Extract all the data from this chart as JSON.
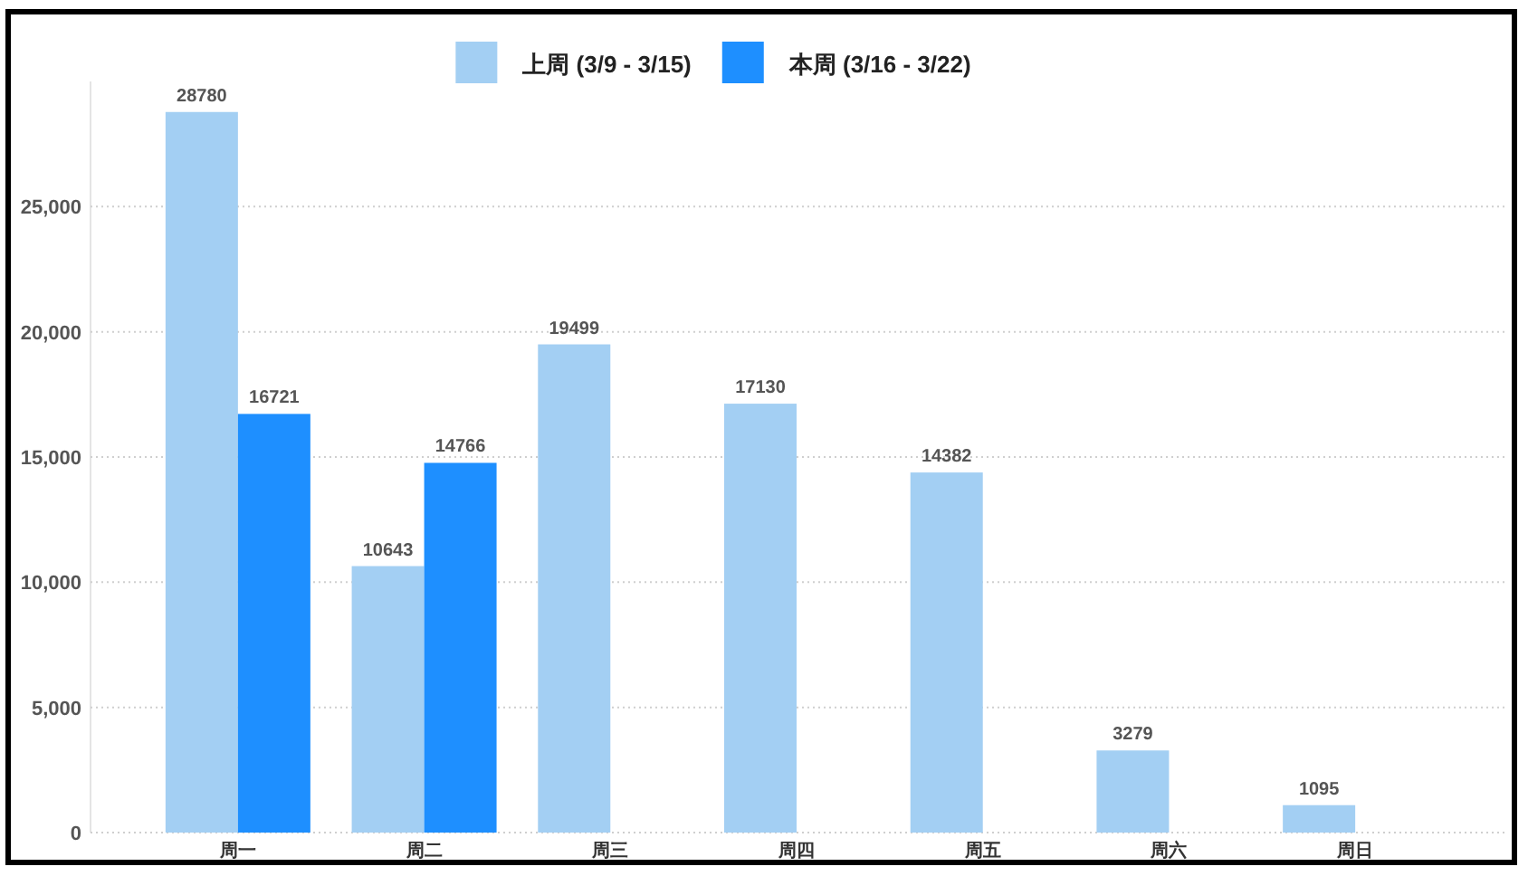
{
  "chart_data": {
    "type": "bar",
    "categories": [
      "周一",
      "周二",
      "周三",
      "周四",
      "周五",
      "周六",
      "周日"
    ],
    "series": [
      {
        "name": "上周 (3/9 - 3/15)",
        "color": "#a3cff3",
        "values": [
          28780,
          10643,
          19499,
          17130,
          14382,
          3279,
          1095
        ]
      },
      {
        "name": "本周 (3/16 - 3/22)",
        "color": "#1e8fff",
        "values": [
          16721,
          14766,
          null,
          null,
          null,
          null,
          null
        ]
      }
    ],
    "ylim": [
      0,
      30000
    ],
    "yticks": [
      0,
      {
        "value": 5000,
        "label": "5,000"
      },
      {
        "value": 10000,
        "label": "10,000"
      },
      {
        "value": 15000,
        "label": "15,000"
      },
      {
        "value": 20000,
        "label": "20,000"
      },
      {
        "value": 25000,
        "label": "25,000"
      }
    ],
    "grid": "y",
    "legend": "top",
    "data_labels": true
  }
}
